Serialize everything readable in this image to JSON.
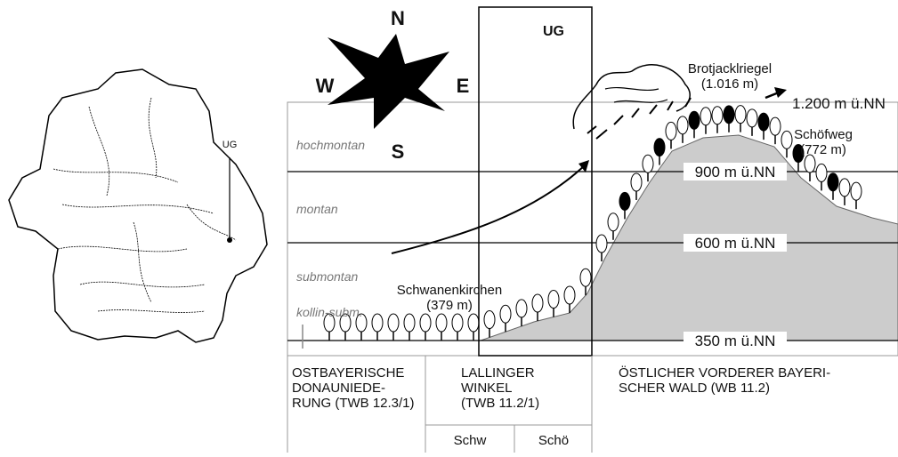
{
  "map_label": "UG",
  "compass": {
    "n": "N",
    "e": "E",
    "s": "S",
    "w": "W"
  },
  "study_area": "UG",
  "zones": [
    "hochmontan",
    "montan",
    "submontan",
    "kollin-subm."
  ],
  "elevations": [
    "900 m ü.NN",
    "600 m ü.NN",
    "350 m ü.NN"
  ],
  "top_level": "1.200 m ü.NN",
  "peaks": [
    {
      "name": "Brotjacklriegel",
      "height": "(1.016 m)"
    },
    {
      "name": "Schöfweg",
      "height": "(772 m)"
    },
    {
      "name": "Schwanenkirchen",
      "height": "(379 m)"
    }
  ],
  "regions": [
    [
      "OSTBAYERISCHE",
      "DONAUNIEDE-",
      "RUNG (TWB 12.3/1)"
    ],
    [
      "LALLINGER",
      "WINKEL",
      "(TWB 11.2/1)"
    ],
    [
      "ÖSTLICHER VORDERER BAYERI-",
      "SCHER WALD (WB 11.2)"
    ]
  ],
  "subregions": [
    "Schw",
    "Schö"
  ]
}
